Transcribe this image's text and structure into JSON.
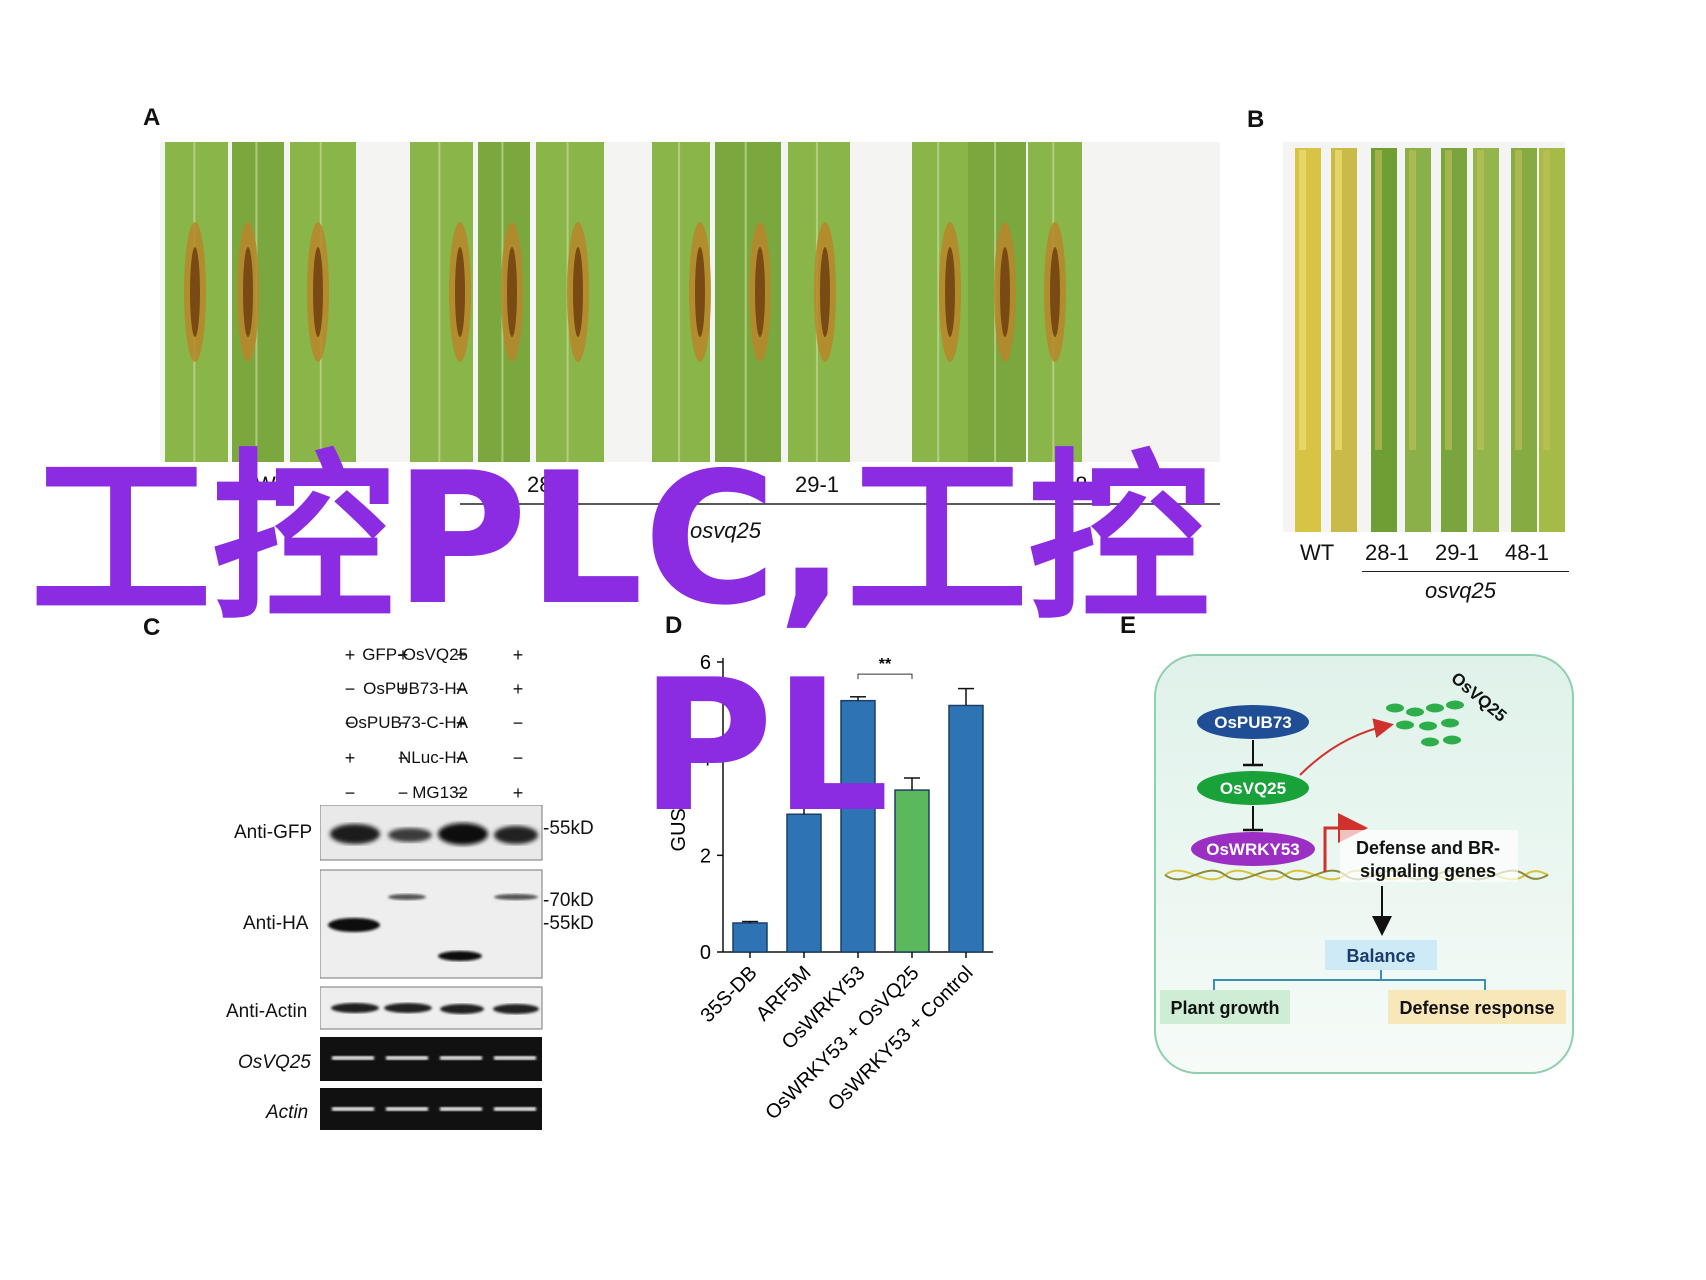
{
  "panels": {
    "a": {
      "letter": "A",
      "labels": [
        "WT",
        "28-1",
        "29-1",
        "48-1"
      ],
      "group_label": "osvq25"
    },
    "b": {
      "letter": "B",
      "labels": [
        "WT",
        "28-1",
        "29-1",
        "48-1"
      ],
      "group_label": "osvq25"
    },
    "c": {
      "letter": "C",
      "rows": [
        {
          "label": "GFP-OsVQ25",
          "signs": [
            "+",
            "+",
            "+",
            "+"
          ]
        },
        {
          "label": "OsPUB73-HA",
          "signs": [
            "−",
            "+",
            "−",
            "+"
          ]
        },
        {
          "label": "OsPUB73-C-HA",
          "signs": [
            "−",
            "−",
            "+",
            "−"
          ]
        },
        {
          "label": "NLuc-HA",
          "signs": [
            "+",
            "−",
            "−",
            "−"
          ]
        },
        {
          "label": "MG132",
          "signs": [
            "−",
            "−",
            "−",
            "+"
          ]
        }
      ],
      "blots": [
        "Anti-GFP",
        "Anti-HA",
        "Anti-Actin",
        "OsVQ25",
        "Actin"
      ],
      "markers": [
        "55kD",
        "70kD",
        "55kD"
      ]
    },
    "d": {
      "letter": "D",
      "significance": "**"
    },
    "e": {
      "letter": "E",
      "nodes": {
        "pub73": "OsPUB73",
        "vq25": "OsVQ25",
        "vq25_degraded": "OsVQ25",
        "wrky53": "OsWRKY53",
        "genes_line1": "Defense and BR-",
        "genes_line2": "signaling genes",
        "balance": "Balance",
        "growth": "Plant growth",
        "defense": "Defense response"
      }
    }
  },
  "watermark": {
    "line1": "工控PLC,工控",
    "line2": "PL",
    "color": "#8b2be2"
  },
  "chart_data": {
    "type": "bar",
    "categories": [
      "35S-DB",
      "ARF5M",
      "OsWRKY53",
      "OsWRKY53 + OsVQ25",
      "OsWRKY53 + Control"
    ],
    "values": [
      0.6,
      2.85,
      5.2,
      3.35,
      5.1
    ],
    "errors": [
      0.03,
      0.18,
      0.08,
      0.25,
      0.35
    ],
    "colors": [
      "#2e74b5",
      "#2e74b5",
      "#2e74b5",
      "#5cb85c",
      "#2e74b5"
    ],
    "ylabel": "GUS/LUC",
    "ylim": [
      0,
      6
    ],
    "yticks": [
      0,
      2,
      4,
      6
    ],
    "annotation": "**"
  }
}
